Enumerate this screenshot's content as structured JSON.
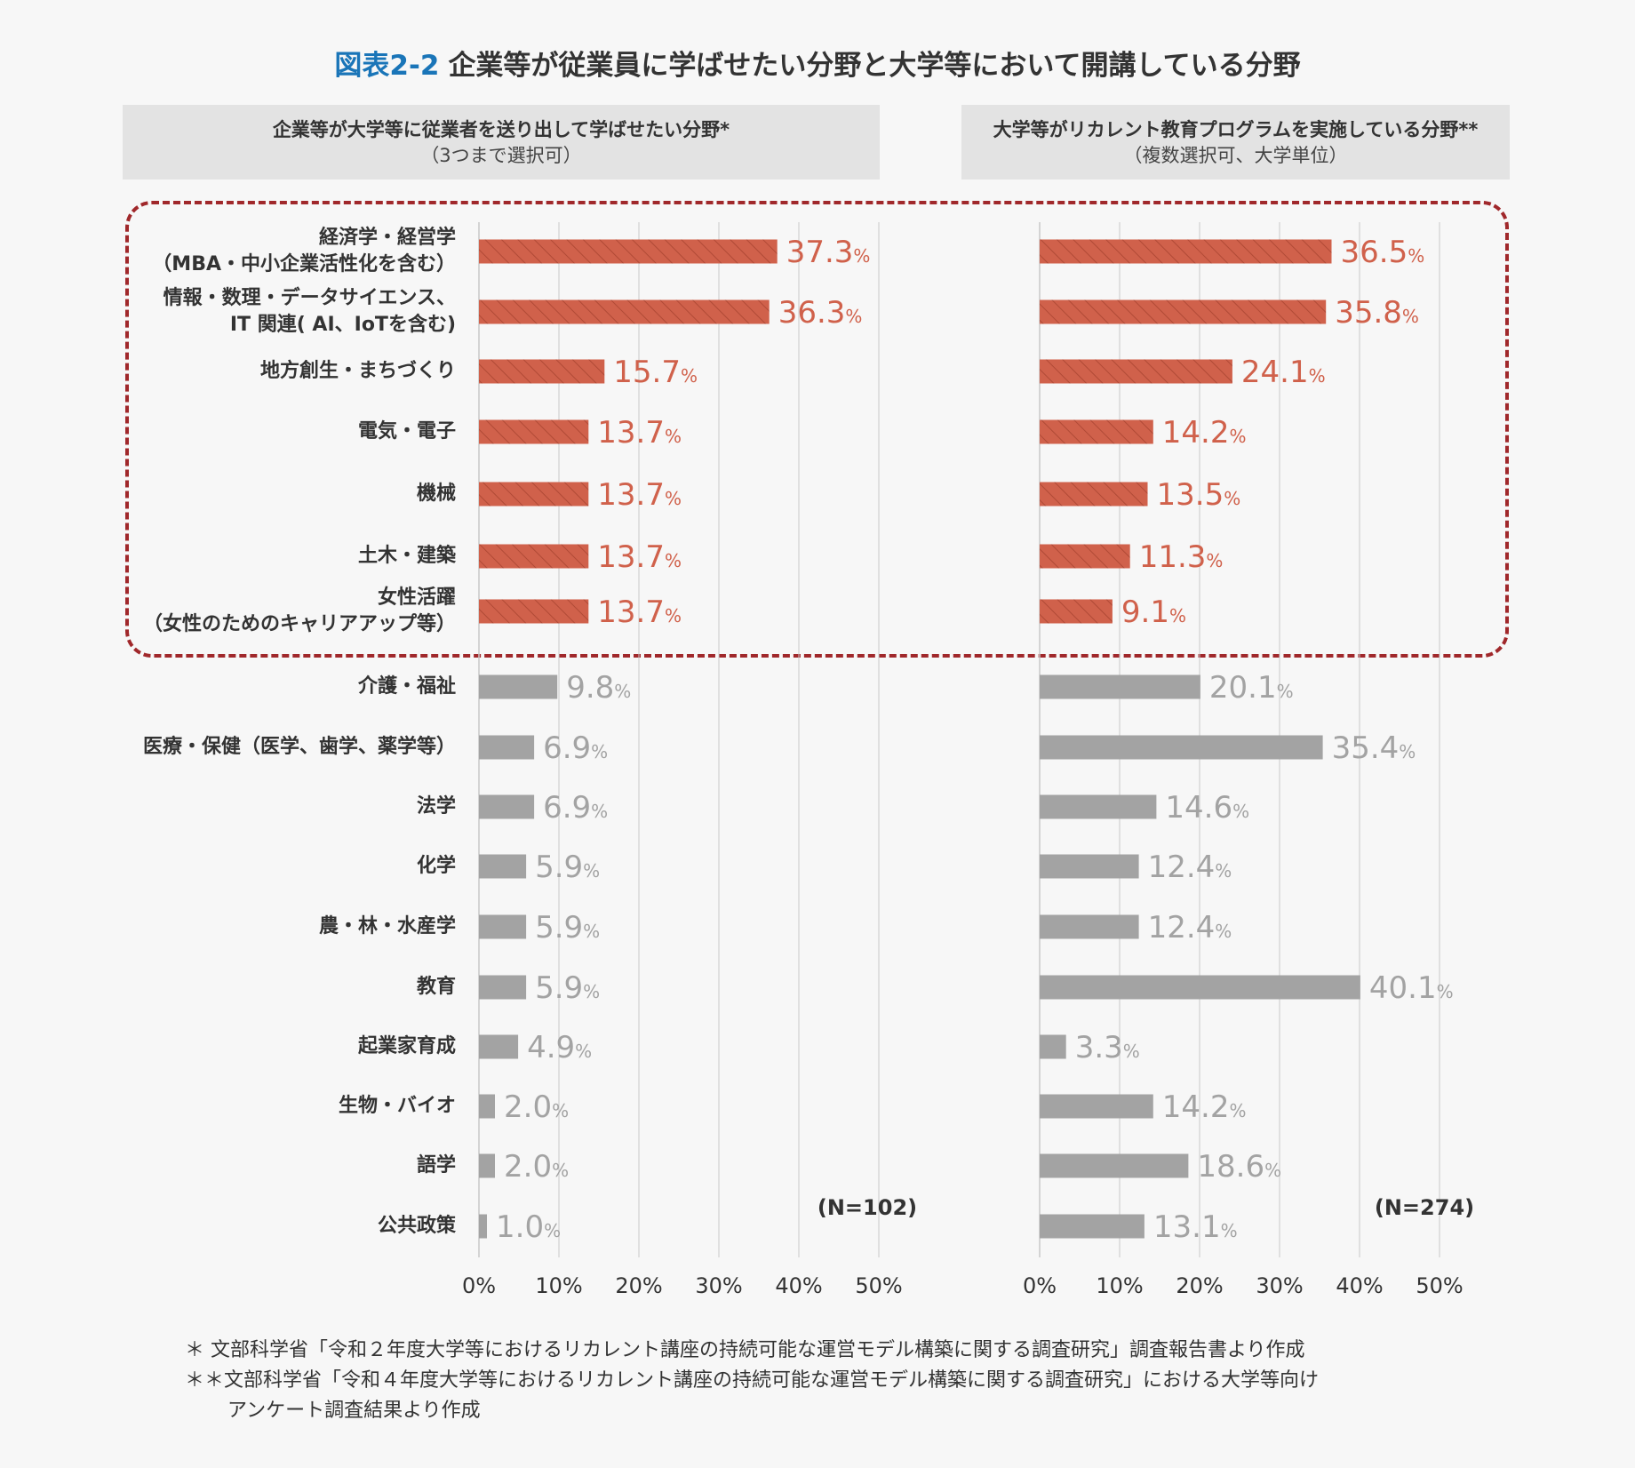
{
  "title": {
    "figure_number": "図表2-2",
    "text": "企業等が従業員に学ばせたい分野と大学等において開講している分野"
  },
  "panels": [
    {
      "header_line1": "企業等が大学等に従業者を送り出して学ばせたい分野*",
      "header_line2": "（3つまで選択可）",
      "n_label": "(N=102)"
    },
    {
      "header_line1": "大学等がリカレント教育プログラムを実施している分野**",
      "header_line2": "（複数選択可、大学単位）",
      "n_label": "(N=274)"
    }
  ],
  "categories": [
    [
      "経済学・経営学",
      "（MBA・中小企業活性化を含む）"
    ],
    [
      "情報・数理・データサイエンス、",
      "IT 関連( AI、IoTを含む)"
    ],
    [
      "地方創生・まちづくり"
    ],
    [
      "電気・電子"
    ],
    [
      "機械"
    ],
    [
      "土木・建築"
    ],
    [
      "女性活躍",
      "（女性のためのキャリアアップ等）"
    ],
    [
      "介護・福祉"
    ],
    [
      "医療・保健（医学、歯学、薬学等）"
    ],
    [
      "法学"
    ],
    [
      "化学"
    ],
    [
      "農・林・水産学"
    ],
    [
      "教育"
    ],
    [
      "起業家育成"
    ],
    [
      "生物・バイオ"
    ],
    [
      "語学"
    ],
    [
      "公共政策"
    ]
  ],
  "footnotes": [
    "＊ 文部科学省「令和２年度大学等におけるリカレント講座の持続可能な運営モデル構築に関する調査研究」調査報告書より作成",
    "＊＊文部科学省「令和４年度大学等におけるリカレント講座の持続可能な運営モデル構築に関する調査研究」における大学等向け",
    "アンケート調査結果より作成"
  ],
  "colors": {
    "highlight": "#d0614b",
    "highlight_stripe": "#b04a36",
    "other": "#a3a3a3",
    "label_highlight": "#d0614b",
    "label_other": "#a3a3a3",
    "box": "#a0282b",
    "title_accent": "#1a75b8",
    "grid": "#c8c8c8"
  },
  "chart_data": [
    {
      "type": "bar",
      "orientation": "horizontal",
      "title": "企業等が大学等に従業者を送り出して学ばせたい分野*",
      "categories": [
        "経済学・経営学（MBA・中小企業活性化を含む）",
        "情報・数理・データサイエンス、IT 関連( AI、IoTを含む)",
        "地方創生・まちづくり",
        "電気・電子",
        "機械",
        "土木・建築",
        "女性活躍（女性のためのキャリアアップ等）",
        "介護・福祉",
        "医療・保健（医学、歯学、薬学等）",
        "法学",
        "化学",
        "農・林・水産学",
        "教育",
        "起業家育成",
        "生物・バイオ",
        "語学",
        "公共政策"
      ],
      "values": [
        37.3,
        36.3,
        15.7,
        13.7,
        13.7,
        13.7,
        13.7,
        9.8,
        6.9,
        6.9,
        5.9,
        5.9,
        5.9,
        4.9,
        2.0,
        2.0,
        1.0
      ],
      "value_labels": [
        "37.3",
        "36.3",
        "15.7",
        "13.7",
        "13.7",
        "13.7",
        "13.7",
        "9.8",
        "6.9",
        "6.9",
        "5.9",
        "5.9",
        "5.9",
        "4.9",
        "2.0",
        "2.0",
        "1.0"
      ],
      "unit": "%",
      "highlighted_count": 7,
      "xlim": [
        0,
        50
      ],
      "xticks": [
        "0%",
        "10%",
        "20%",
        "30%",
        "40%",
        "50%"
      ],
      "grid": true
    },
    {
      "type": "bar",
      "orientation": "horizontal",
      "title": "大学等がリカレント教育プログラムを実施している分野**",
      "categories": [
        "経済学・経営学（MBA・中小企業活性化を含む）",
        "情報・数理・データサイエンス、IT 関連( AI、IoTを含む)",
        "地方創生・まちづくり",
        "電気・電子",
        "機械",
        "土木・建築",
        "女性活躍（女性のためのキャリアアップ等）",
        "介護・福祉",
        "医療・保健（医学、歯学、薬学等）",
        "法学",
        "化学",
        "農・林・水産学",
        "教育",
        "起業家育成",
        "生物・バイオ",
        "語学",
        "公共政策"
      ],
      "values": [
        36.5,
        35.8,
        24.1,
        14.2,
        13.5,
        11.3,
        9.1,
        20.1,
        35.4,
        14.6,
        12.4,
        12.4,
        40.1,
        3.3,
        14.2,
        18.6,
        13.1
      ],
      "value_labels": [
        "36.5",
        "35.8",
        "24.1",
        "14.2",
        "13.5",
        "11.3",
        "9.1",
        "20.1",
        "35.4",
        "14.6",
        "12.4",
        "12.4",
        "40.1",
        "3.3",
        "14.2",
        "18.6",
        "13.1"
      ],
      "unit": "%",
      "highlighted_count": 7,
      "xlim": [
        0,
        50
      ],
      "xticks": [
        "0%",
        "10%",
        "20%",
        "30%",
        "40%",
        "50%"
      ],
      "grid": true
    }
  ]
}
